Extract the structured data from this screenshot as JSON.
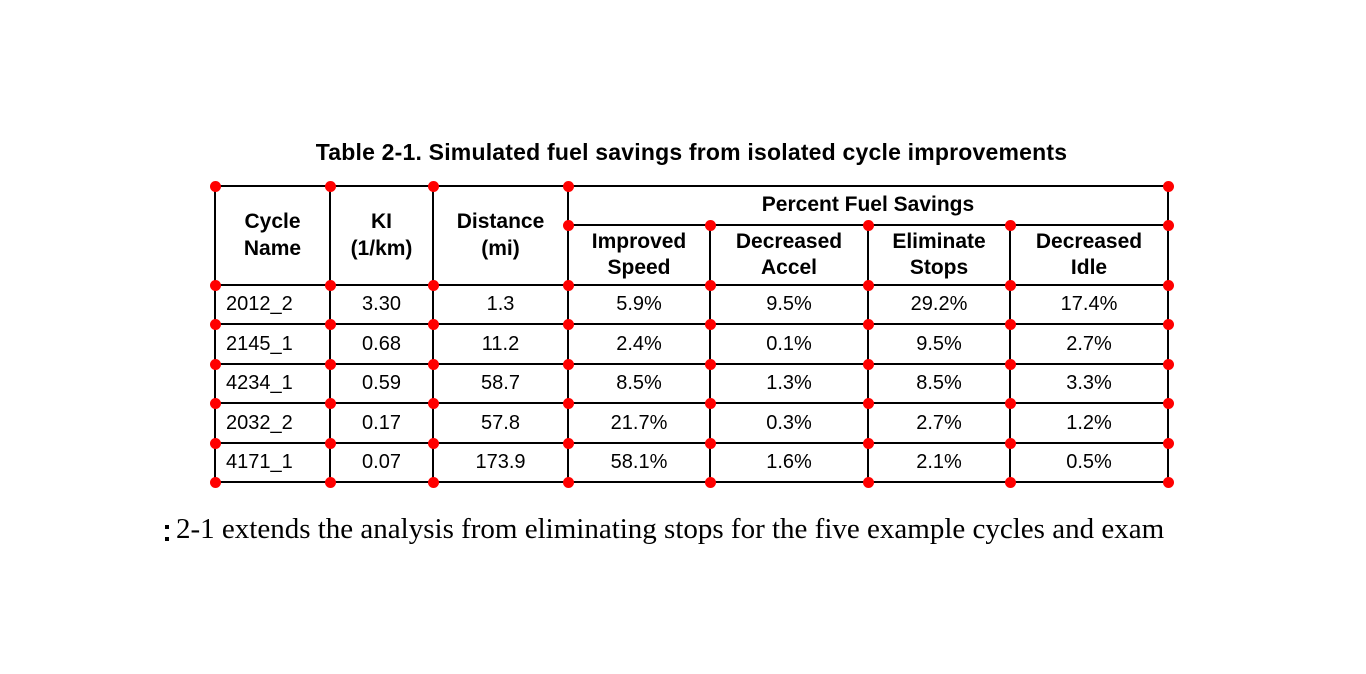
{
  "title": "Table 2-1. Simulated fuel savings from isolated cycle improvements",
  "table": {
    "group_header": "Percent Fuel Savings",
    "columns": [
      "Cycle\nName",
      "KI\n(1/km)",
      "Distance\n(mi)"
    ],
    "savings_columns": [
      "Improved\nSpeed",
      "Decreased\nAccel",
      "Eliminate\nStops",
      "Decreased\nIdle"
    ],
    "rows": [
      [
        "2012_2",
        "3.30",
        "1.3",
        "5.9%",
        "9.5%",
        "29.2%",
        "17.4%"
      ],
      [
        "2145_1",
        "0.68",
        "11.2",
        "2.4%",
        "0.1%",
        "9.5%",
        "2.7%"
      ],
      [
        "4234_1",
        "0.59",
        "58.7",
        "8.5%",
        "1.3%",
        "8.5%",
        "3.3%"
      ],
      [
        "2032_2",
        "0.17",
        "57.8",
        "21.7%",
        "0.3%",
        "2.7%",
        "1.2%"
      ],
      [
        "4171_1",
        "0.07",
        "173.9",
        "58.1%",
        "1.6%",
        "2.1%",
        "0.5%"
      ]
    ]
  },
  "paragraph": "2-1 extends the analysis from eliminating stops for the five example cycles and exam",
  "colors": {
    "marker": "#ff0000",
    "grid": "#000000",
    "text": "#000000",
    "background": "#ffffff"
  }
}
